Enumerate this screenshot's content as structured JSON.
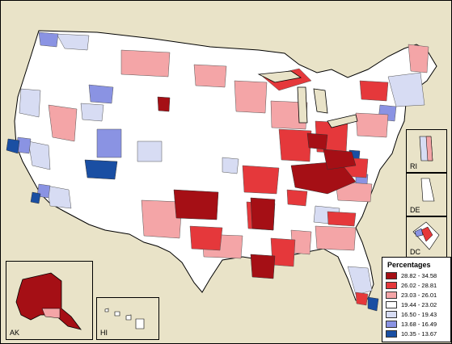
{
  "legend": {
    "title": "Percentages",
    "classes": [
      {
        "label": "28.82 - 34.58",
        "color": "#a50f15"
      },
      {
        "label": "26.02 - 28.81",
        "color": "#e5383b"
      },
      {
        "label": "23.03 - 26.01",
        "color": "#f4a5a7"
      },
      {
        "label": "19.44 - 23.02",
        "color": "#ffffff"
      },
      {
        "label": "16.50 - 19.43",
        "color": "#d7dcf3"
      },
      {
        "label": "13.68 - 16.49",
        "color": "#8a93e3"
      },
      {
        "label": "10.35 - 13.67",
        "color": "#1a4fa3"
      }
    ]
  },
  "insets": {
    "alaska": "AK",
    "hawaii": "HI",
    "rhode_island": "RI",
    "delaware": "DE",
    "district_of_columbia": "DC"
  }
}
